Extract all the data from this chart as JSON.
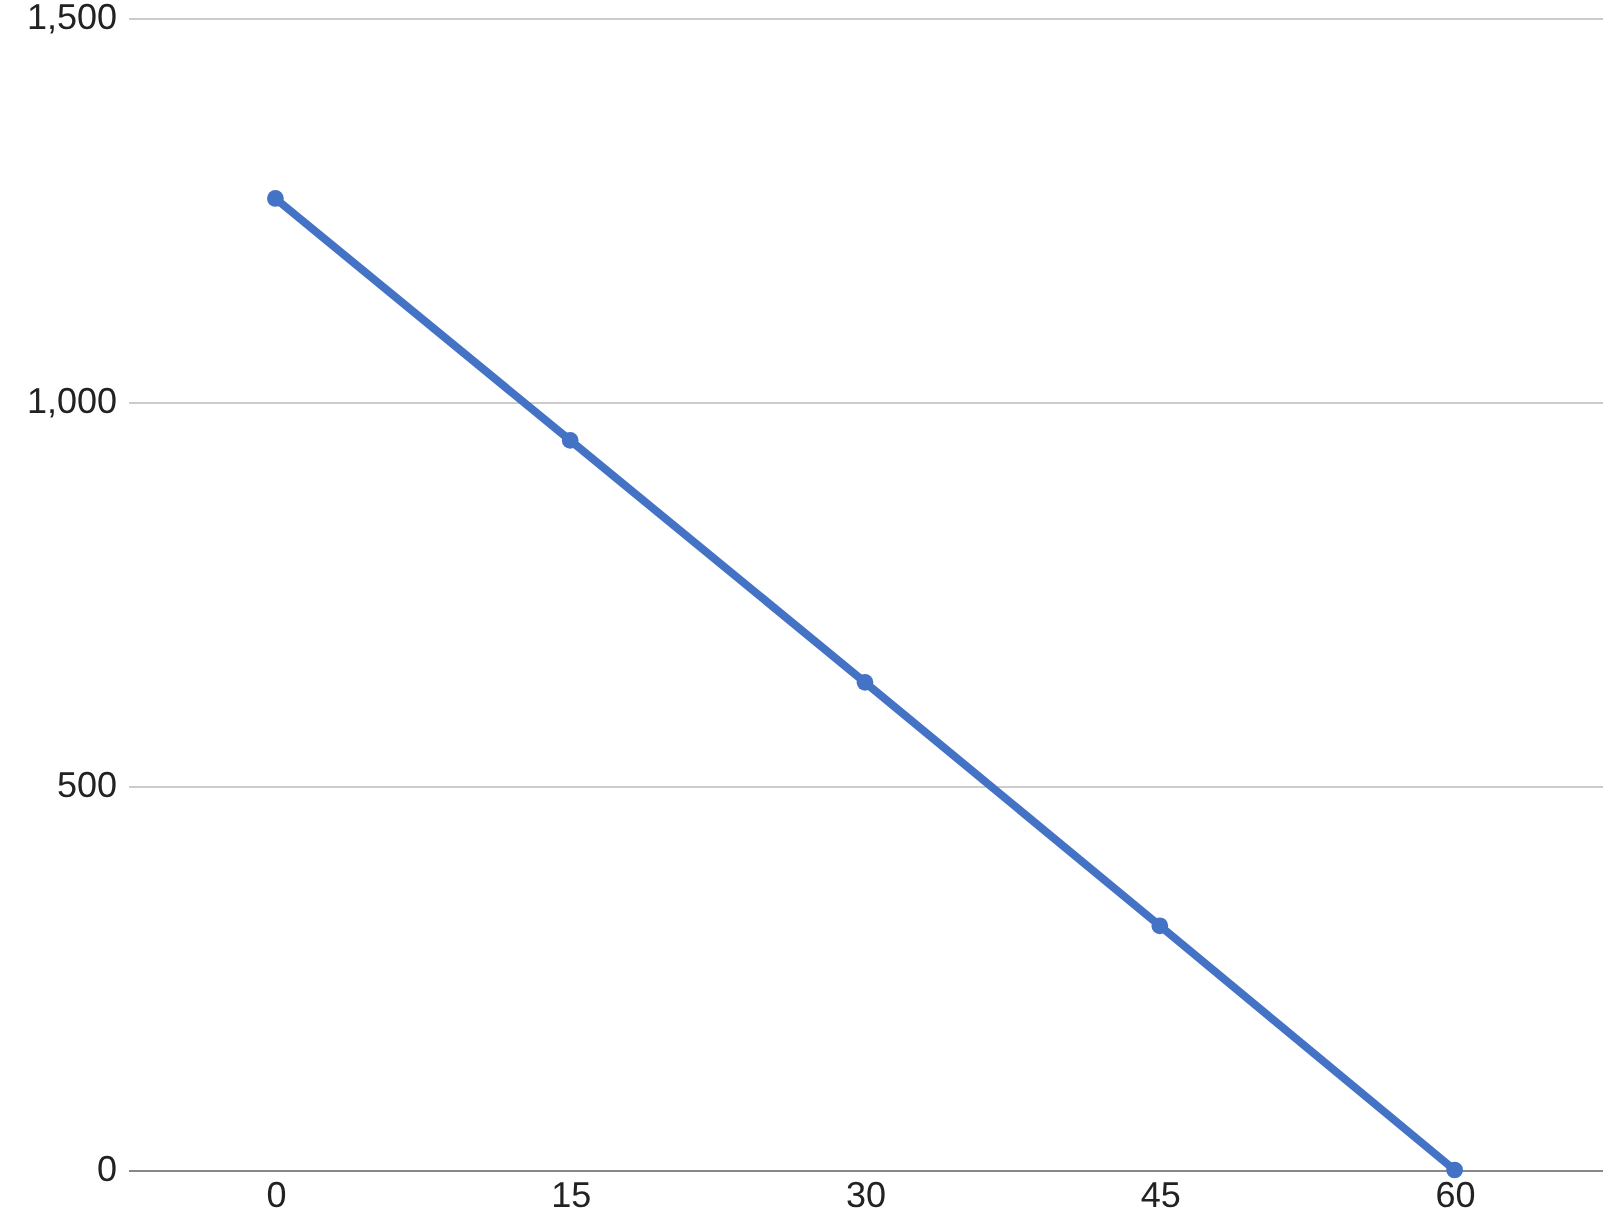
{
  "chart_data": {
    "type": "line",
    "categories": [
      "0",
      "15",
      "30",
      "45",
      "60"
    ],
    "series": [
      {
        "color": "#4472c4",
        "values": [
          1265,
          950,
          635,
          318,
          0
        ]
      }
    ],
    "ylim": [
      0,
      1500
    ],
    "yticks": [
      0,
      {
        "value": 500,
        "label": "500"
      },
      {
        "value": 1000,
        "label": "1,000"
      },
      {
        "value": 1500,
        "label": "1,500"
      }
    ],
    "grid": "y",
    "marker": "circle",
    "line_style": "solid"
  }
}
